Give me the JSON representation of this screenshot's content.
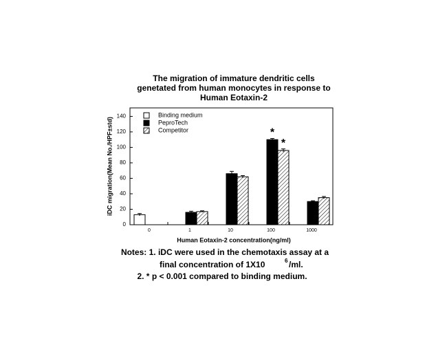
{
  "chart_data": {
    "type": "bar",
    "title": [
      "The migration of immature dendritic cells",
      "genetated from human monocytes in response to",
      "Human Eotaxin-2"
    ],
    "x_label": "Human Eotaxin-2 concentration(ng/ml)",
    "y_label": "iDC migration(Mean No./HPF±std)",
    "categories": [
      "0",
      "1",
      "10",
      "100",
      "1000"
    ],
    "series": [
      {
        "name": "Binding medium",
        "color": "#ffffff",
        "values": [
          13,
          null,
          null,
          null,
          null
        ],
        "errors": [
          1.5,
          null,
          null,
          null,
          null
        ]
      },
      {
        "name": "PeproTech",
        "color": "#000000",
        "values": [
          null,
          16,
          66,
          110,
          30
        ],
        "errors": [
          null,
          1.5,
          3,
          1.5,
          1
        ]
      },
      {
        "name": "Competitor",
        "color": "hatched",
        "values": [
          null,
          17,
          62,
          96,
          35
        ],
        "errors": [
          null,
          1,
          1.5,
          2,
          1.5
        ]
      }
    ],
    "annotations": [
      {
        "text": "*",
        "series": 1,
        "category": 3
      },
      {
        "text": "*",
        "series": 2,
        "category": 3
      }
    ],
    "ylim": [
      0,
      151
    ],
    "yticks": [
      0,
      20,
      40,
      60,
      80,
      100,
      120,
      140
    ],
    "legend": "upper left",
    "notes": [
      "Notes: 1. iDC were used in the chemotaxis assay at a",
      "final concentration of 1X10",
      "6",
      "/ml.",
      "2. * p < 0.001 compared to binding medium."
    ]
  }
}
